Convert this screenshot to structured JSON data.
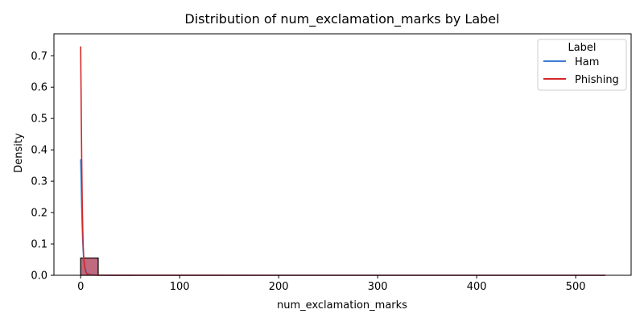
{
  "chart_data": {
    "type": "histogram+kde",
    "title": "Distribution of num_exclamation_marks by Label",
    "xlabel": "num_exclamation_marks",
    "ylabel": "Density",
    "xlim": [
      -27,
      556
    ],
    "ylim": [
      0,
      0.77
    ],
    "x_ticks": [
      0,
      100,
      200,
      300,
      400,
      500
    ],
    "y_ticks": [
      0.0,
      0.1,
      0.2,
      0.3,
      0.4,
      0.5,
      0.6,
      0.7
    ],
    "grid": false,
    "legend": {
      "title": "Label",
      "placement": "top-right",
      "entries": [
        {
          "name": "Ham",
          "color": "#3a7dd1"
        },
        {
          "name": "Phishing",
          "color": "#d62728"
        }
      ]
    },
    "histogram": {
      "fill_color": "#c06a80",
      "edge_color": "#000000",
      "bins": [
        {
          "x0": 0,
          "x1": 17.7,
          "density": 0.055
        },
        {
          "x0": 17.7,
          "x1": 35.4,
          "density": 0.0005
        },
        {
          "x0": 35.4,
          "x1": 53.1,
          "density": 0.0002
        },
        {
          "x0": 53.1,
          "x1": 530,
          "density": 0.0
        }
      ]
    },
    "series": [
      {
        "name": "Ham",
        "color": "#3a7dd1",
        "x": [
          0,
          0.5,
          1,
          1.5,
          2,
          2.5,
          3,
          4,
          5,
          6,
          8,
          10,
          15,
          20,
          30,
          50,
          100,
          200,
          300,
          400,
          530
        ],
        "y": [
          0.37,
          0.3,
          0.22,
          0.16,
          0.115,
          0.08,
          0.055,
          0.03,
          0.016,
          0.009,
          0.004,
          0.002,
          0.0008,
          0.0004,
          0.0002,
          0.0001,
          5e-05,
          0.0,
          0.0,
          0.0,
          0.0
        ]
      },
      {
        "name": "Phishing",
        "color": "#d62728",
        "x": [
          0,
          0.5,
          1,
          1.5,
          2,
          2.5,
          3,
          4,
          5,
          6,
          8,
          10,
          15,
          20,
          30,
          50,
          100,
          200,
          300,
          400,
          530
        ],
        "y": [
          0.73,
          0.55,
          0.38,
          0.25,
          0.16,
          0.1,
          0.06,
          0.028,
          0.013,
          0.006,
          0.002,
          0.001,
          0.0005,
          0.0003,
          0.0002,
          0.0001,
          5e-05,
          0.0,
          0.0,
          0.0,
          0.0
        ]
      }
    ]
  }
}
